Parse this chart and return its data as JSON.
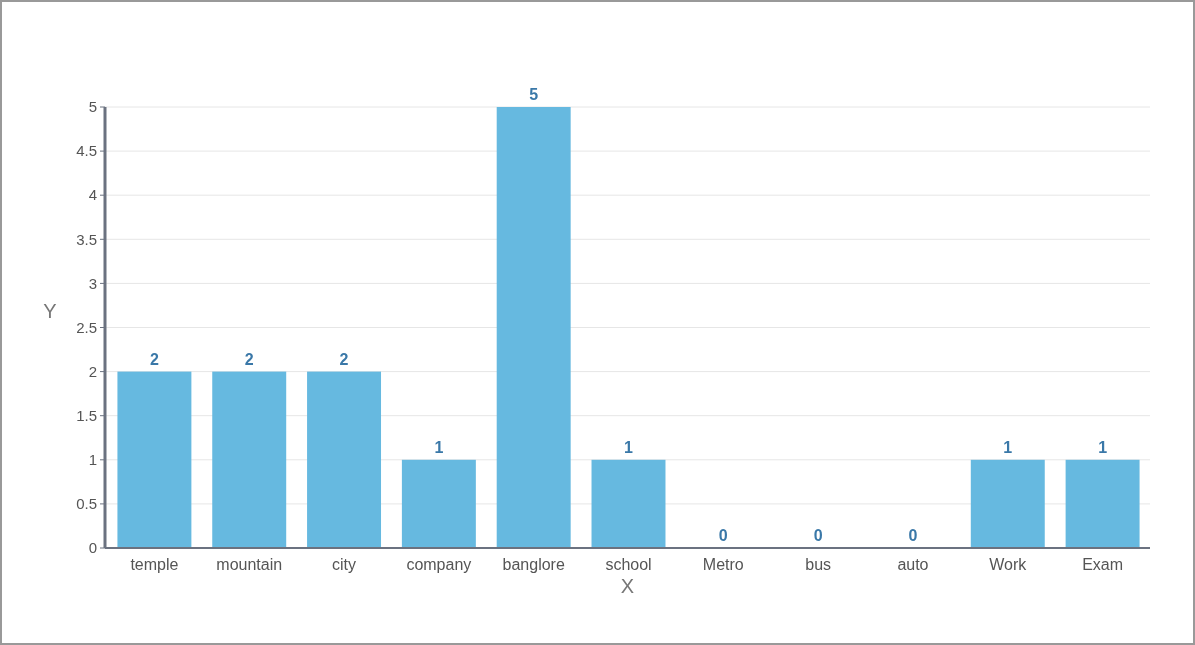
{
  "chart_data": {
    "type": "bar",
    "xlabel": "X",
    "ylabel": "Y",
    "categories": [
      "temple",
      "mountain",
      "city",
      "company",
      "banglore",
      "school",
      "Metro",
      "bus",
      "auto",
      "Work",
      "Exam"
    ],
    "values": [
      2,
      2,
      2,
      1,
      5,
      1,
      0,
      0,
      0,
      1,
      1
    ],
    "color": "#66b9e0",
    "ylim": [
      0,
      5
    ],
    "yticks": [
      0,
      0.5,
      1,
      1.5,
      2,
      2.5,
      3,
      3.5,
      4,
      4.5,
      5
    ],
    "grid": "y",
    "data_labels": true
  }
}
